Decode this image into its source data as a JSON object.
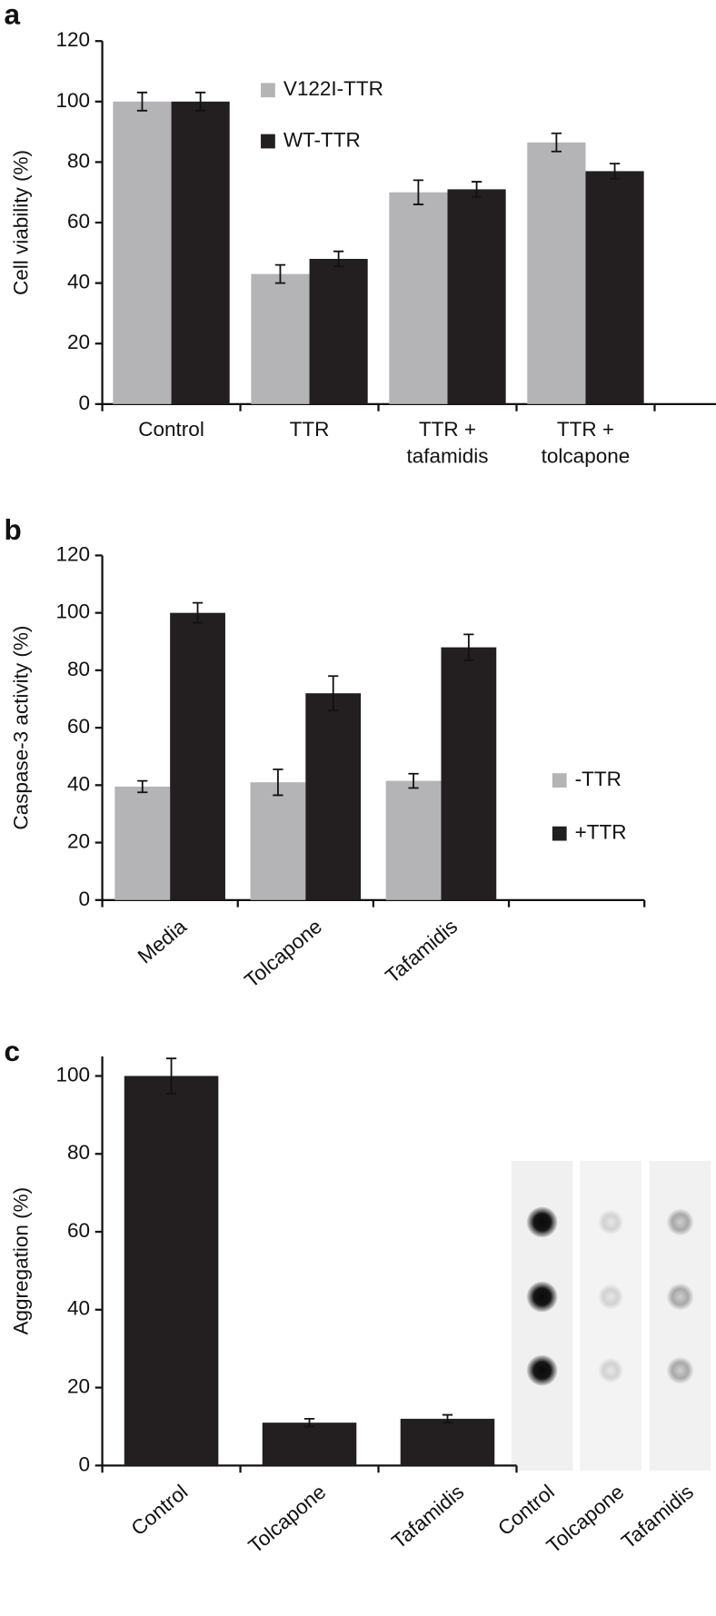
{
  "chart_data": [
    {
      "type": "bar",
      "panel": "a",
      "y_label": "Cell viability (%)",
      "categories": [
        [
          "Control"
        ],
        [
          "TTR"
        ],
        [
          "TTR +",
          "tafamidis"
        ],
        [
          "TTR +",
          "tolcapone"
        ]
      ],
      "series": [
        {
          "name": "V122I-TTR",
          "color": "#b4b4b6",
          "values": [
            100,
            43,
            70,
            86.5
          ],
          "errors": [
            3,
            3,
            4,
            3
          ]
        },
        {
          "name": "WT-TTR",
          "color": "#231f20",
          "values": [
            100,
            48,
            71,
            77
          ],
          "errors": [
            3,
            2.5,
            2.5,
            2.5
          ]
        }
      ],
      "ylim": [
        0,
        120
      ],
      "yticks": [
        0,
        20,
        40,
        60,
        80,
        100,
        120
      ]
    },
    {
      "type": "bar",
      "panel": "b",
      "y_label": "Caspase-3 activity (%)",
      "categories": [
        [
          "Media"
        ],
        [
          "Tolcapone"
        ],
        [
          "Tafamidis"
        ],
        null
      ],
      "series": [
        {
          "name": "-TTR",
          "color": "#b4b4b6",
          "values": [
            39.5,
            41,
            41.5,
            null
          ],
          "errors": [
            2,
            4.5,
            2.5,
            null
          ]
        },
        {
          "name": "+TTR",
          "color": "#231f20",
          "values": [
            100,
            72,
            88,
            null
          ],
          "errors": [
            3.5,
            6,
            4.5,
            null
          ]
        }
      ],
      "ylim": [
        0,
        120
      ],
      "yticks": [
        0,
        20,
        40,
        60,
        80,
        100,
        120
      ]
    },
    {
      "type": "bar",
      "panel": "c",
      "y_label": "Aggregation (%)",
      "categories": [
        [
          "Control"
        ],
        [
          "Tolcapone"
        ],
        [
          "Tafamidis"
        ]
      ],
      "series": [
        {
          "color": "#231f20",
          "values": [
            100,
            11,
            12
          ],
          "errors": [
            4.5,
            1,
            1
          ]
        }
      ],
      "ylim": [
        0,
        105
      ],
      "yticks": [
        0,
        20,
        40,
        60,
        80,
        100
      ],
      "blot_labels": [
        "Control",
        "Tolcapone",
        "Tafamidis"
      ]
    }
  ]
}
